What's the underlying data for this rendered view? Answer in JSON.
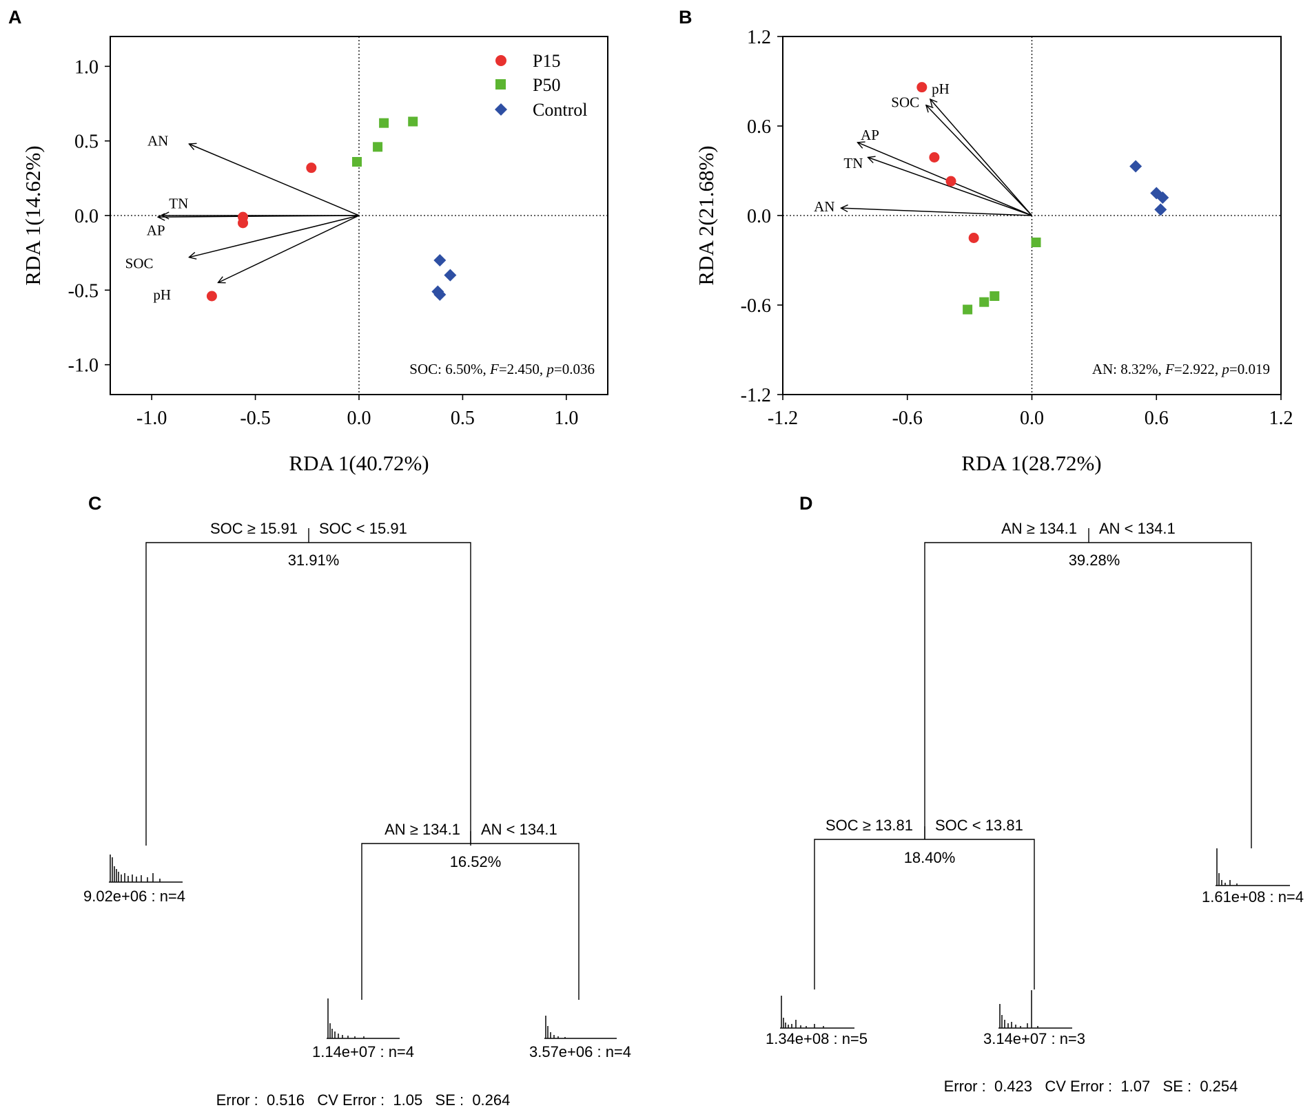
{
  "panels": [
    {
      "letter": "A"
    },
    {
      "letter": "B"
    },
    {
      "letter": "C"
    },
    {
      "letter": "D"
    }
  ],
  "chart_data": [
    {
      "type": "scatter",
      "panel": "A",
      "xlabel": "RDA 1(40.72%)",
      "ylabel": "RDA 1(14.62%)",
      "xlim": [
        -1.2,
        1.2
      ],
      "ylim": [
        -1.2,
        1.2
      ],
      "xticks": [
        -1.0,
        -0.5,
        0.0,
        0.5,
        1.0
      ],
      "yticks": [
        -1.0,
        -0.5,
        0.0,
        0.5,
        1.0
      ],
      "xtick_labels": [
        "-1.0",
        "-0.5",
        "0.0",
        "0.5",
        "1.0"
      ],
      "ytick_labels": [
        "-1.0",
        "-0.5",
        "0.0",
        "0.5",
        "1.0"
      ],
      "legend": {
        "placement": "top-right",
        "entries": [
          "P15",
          "P50",
          "Control"
        ]
      },
      "series": [
        {
          "name": "P15",
          "shape": "circle",
          "color": "#e8312f",
          "points": [
            [
              -0.23,
              0.32
            ],
            [
              -0.56,
              -0.01
            ],
            [
              -0.56,
              -0.05
            ],
            [
              -0.71,
              -0.54
            ]
          ]
        },
        {
          "name": "P50",
          "shape": "square",
          "color": "#5cb531",
          "points": [
            [
              -0.01,
              0.36
            ],
            [
              0.09,
              0.46
            ],
            [
              0.12,
              0.62
            ],
            [
              0.26,
              0.63
            ]
          ]
        },
        {
          "name": "Control",
          "shape": "diamond",
          "color": "#2e4fa3",
          "points": [
            [
              0.39,
              -0.3
            ],
            [
              0.44,
              -0.4
            ],
            [
              0.38,
              -0.51
            ],
            [
              0.39,
              -0.53
            ]
          ]
        }
      ],
      "vectors": [
        {
          "name": "AN",
          "x": -0.82,
          "y": 0.48,
          "lx": -0.97,
          "ly": 0.5
        },
        {
          "name": "TN",
          "x": -0.95,
          "y": 0.0,
          "lx": -0.87,
          "ly": 0.08
        },
        {
          "name": "AP",
          "x": -0.97,
          "y": -0.01,
          "lx": -0.98,
          "ly": -0.1
        },
        {
          "name": "SOC",
          "x": -0.82,
          "y": -0.28,
          "lx": -1.06,
          "ly": -0.32
        },
        {
          "name": "pH",
          "x": -0.68,
          "y": -0.45,
          "lx": -0.95,
          "ly": -0.53
        }
      ],
      "annotation": "SOC: 6.50%, F=2.450, p=0.036",
      "annotation_parts": [
        "SOC: 6.50%, ",
        "F",
        "=2.450, ",
        "p",
        "=0.036"
      ]
    },
    {
      "type": "scatter",
      "panel": "B",
      "xlabel": "RDA 1(28.72%)",
      "ylabel": "RDA 2(21.68%)",
      "xlim": [
        -1.2,
        1.2
      ],
      "ylim": [
        -1.2,
        1.2
      ],
      "xticks": [
        -1.2,
        -0.6,
        0.0,
        0.6,
        1.2
      ],
      "yticks": [
        -1.2,
        -0.6,
        0.0,
        0.6,
        1.2
      ],
      "xtick_labels": [
        "-1.2",
        "-0.6",
        "0.0",
        "0.6",
        "1.2"
      ],
      "ytick_labels": [
        "-1.2",
        "-0.6",
        "0.0",
        "0.6",
        "1.2"
      ],
      "series": [
        {
          "name": "P15",
          "shape": "circle",
          "color": "#e8312f",
          "points": [
            [
              -0.53,
              0.86
            ],
            [
              -0.47,
              0.39
            ],
            [
              -0.39,
              0.23
            ],
            [
              -0.28,
              -0.15
            ]
          ]
        },
        {
          "name": "P50",
          "shape": "square",
          "color": "#5cb531",
          "points": [
            [
              0.02,
              -0.18
            ],
            [
              -0.18,
              -0.54
            ],
            [
              -0.23,
              -0.58
            ],
            [
              -0.31,
              -0.63
            ]
          ]
        },
        {
          "name": "Control",
          "shape": "diamond",
          "color": "#2e4fa3",
          "points": [
            [
              0.5,
              0.33
            ],
            [
              0.6,
              0.15
            ],
            [
              0.63,
              0.12
            ],
            [
              0.62,
              0.04
            ]
          ]
        }
      ],
      "vectors": [
        {
          "name": "pH",
          "x": -0.49,
          "y": 0.78,
          "lx": -0.44,
          "ly": 0.85
        },
        {
          "name": "SOC",
          "x": -0.51,
          "y": 0.74,
          "lx": -0.61,
          "ly": 0.76
        },
        {
          "name": "AP",
          "x": -0.84,
          "y": 0.49,
          "lx": -0.78,
          "ly": 0.54
        },
        {
          "name": "TN",
          "x": -0.79,
          "y": 0.39,
          "lx": -0.86,
          "ly": 0.35
        },
        {
          "name": "AN",
          "x": -0.92,
          "y": 0.05,
          "lx": -1.0,
          "ly": 0.06
        }
      ],
      "annotation": "AN: 8.32%, F=2.922, p=0.019",
      "annotation_parts": [
        "AN: 8.32%, ",
        "F",
        "=2.922, ",
        "p",
        "=0.019"
      ]
    }
  ],
  "trees": [
    {
      "panel": "C",
      "root": {
        "left": "SOC ≥ 15.91",
        "right": "SOC < 15.91",
        "percent": "31.91%"
      },
      "sub": {
        "left": "AN ≥ 134.1",
        "right": "AN < 134.1",
        "percent": "16.52%"
      },
      "leaves": [
        "9.02e+06 : n=4",
        "1.14e+07 : n=4",
        "3.57e+06 : n=4"
      ],
      "error": "Error :  0.516   CV Error :  1.05   SE :  0.264"
    },
    {
      "panel": "D",
      "root": {
        "left": "AN ≥ 134.1",
        "right": "AN < 134.1",
        "percent": "39.28%"
      },
      "sub": {
        "left": "SOC ≥ 13.81",
        "right": "SOC < 13.81",
        "percent": "18.40%"
      },
      "leaves": [
        "1.34e+08 : n=5",
        "3.14e+07 : n=3",
        "1.61e+08 : n=4"
      ],
      "error": "Error :  0.423   CV Error :  1.07   SE :  0.254"
    }
  ]
}
